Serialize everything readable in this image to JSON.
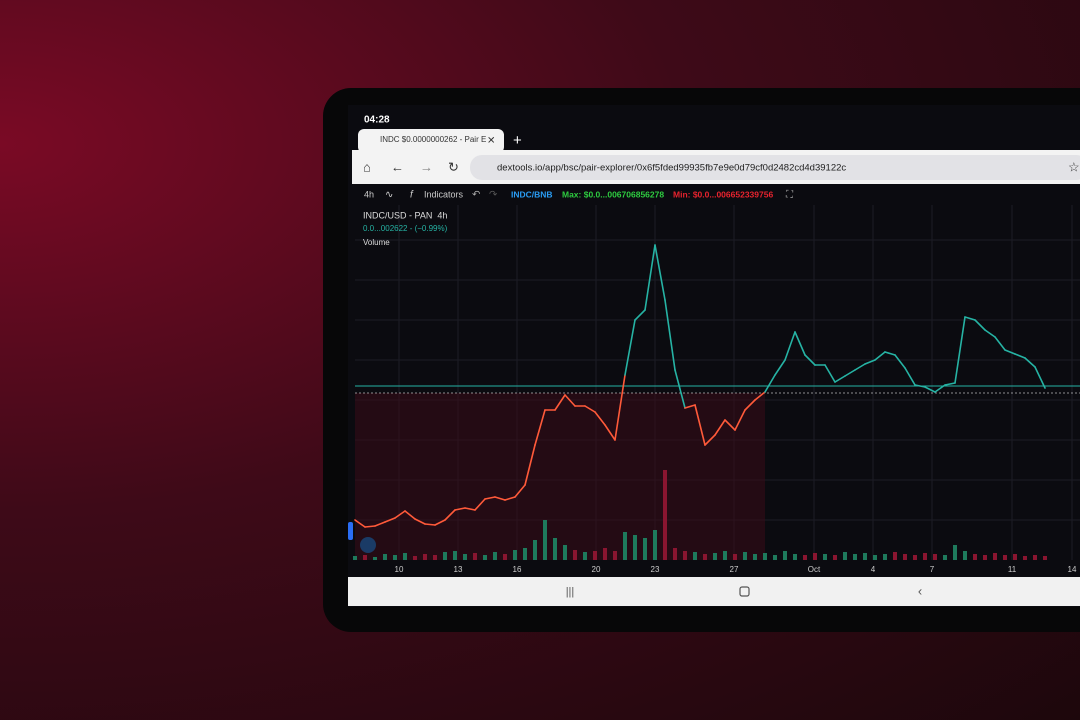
{
  "status_bar": {
    "time": "04:28"
  },
  "browser": {
    "tab_title": "INDC $0.0000000262 - Pair E",
    "url": "dextools.io/app/bsc/pair-explorer/0x6f5fded99935fb7e9e0d79cf0d2482cd4d39122c"
  },
  "toolbar": {
    "interval": "4h",
    "indicators": "Indicators",
    "pair": "INDC/BNB",
    "max": "Max: $0.0...006706856278",
    "min": "Min: $0.0...006652339756"
  },
  "chart_data": {
    "type": "line",
    "title": "INDC/USD - PAN  4h",
    "subtitle": "0.0...002622 - (−0.99%)",
    "volume_label": "Volume",
    "x_labels": [
      "10",
      "13",
      "16",
      "20",
      "23",
      "27",
      "Oct",
      "4",
      "7",
      "11",
      "14"
    ],
    "values": [
      40,
      33,
      34,
      38,
      42,
      49,
      41,
      36,
      35,
      40,
      50,
      52,
      50,
      61,
      63,
      60,
      63,
      75,
      115,
      150,
      150,
      165,
      154,
      154,
      148,
      135,
      120,
      185,
      240,
      250,
      315,
      260,
      190,
      152,
      155,
      115,
      125,
      140,
      130,
      150,
      160,
      168,
      185,
      200,
      228,
      205,
      195,
      195,
      178,
      184,
      190,
      196,
      200,
      208,
      205,
      192,
      175,
      173,
      168,
      175,
      177,
      243,
      240,
      230,
      223,
      210,
      206,
      202,
      193,
      172
    ],
    "volume": [
      4,
      5,
      3,
      6,
      5,
      7,
      4,
      6,
      5,
      8,
      9,
      6,
      7,
      5,
      8,
      6,
      10,
      12,
      20,
      40,
      22,
      15,
      10,
      8,
      9,
      12,
      9,
      28,
      25,
      22,
      30,
      90,
      12,
      9,
      8,
      6,
      7,
      9,
      6,
      8,
      6,
      7,
      5,
      9,
      6,
      5,
      7,
      6,
      5,
      8,
      6,
      7,
      5,
      6,
      8,
      6,
      5,
      7,
      6,
      5,
      15,
      9,
      6,
      5,
      7,
      5,
      6,
      4,
      5,
      4
    ],
    "price_line": 167,
    "colors": {
      "up": "#26b3a4",
      "down": "#ff5a3a"
    }
  }
}
